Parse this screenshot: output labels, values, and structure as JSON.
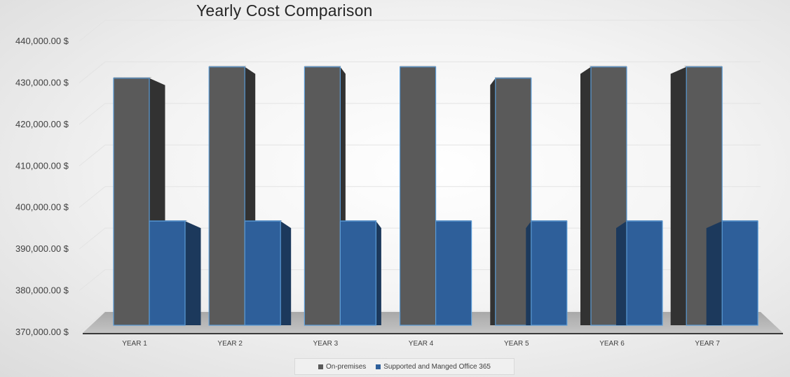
{
  "chart_data": {
    "type": "bar",
    "title": "Yearly Cost Comparison",
    "categories": [
      "YEAR 1",
      "YEAR 2",
      "YEAR 3",
      "YEAR 4",
      "YEAR 5",
      "YEAR 6",
      "YEAR 7"
    ],
    "series": [
      {
        "name": "On-premises",
        "color": "#5a5a5a",
        "values": [
          431200,
          434000,
          434000,
          434000,
          431200,
          434000,
          434000
        ]
      },
      {
        "name": "Supported and Manged Office 365",
        "color": "#2e5f9a",
        "values": [
          395800,
          395800,
          395800,
          395800,
          395800,
          395800,
          395800
        ]
      }
    ],
    "ylim": [
      370000,
      440000
    ],
    "yticks": [
      {
        "value": 440000,
        "label": "440,000.00  $"
      },
      {
        "value": 430000,
        "label": "430,000.00  $"
      },
      {
        "value": 420000,
        "label": "420,000.00  $"
      },
      {
        "value": 410000,
        "label": "410,000.00  $"
      },
      {
        "value": 400000,
        "label": "400,000.00  $"
      },
      {
        "value": 390000,
        "label": "390,000.00  $"
      },
      {
        "value": 380000,
        "label": "380,000.00  $"
      },
      {
        "value": 370000,
        "label": "370,000.00  $"
      }
    ],
    "grid": true,
    "legend_position": "bottom",
    "style": "3d-column"
  }
}
